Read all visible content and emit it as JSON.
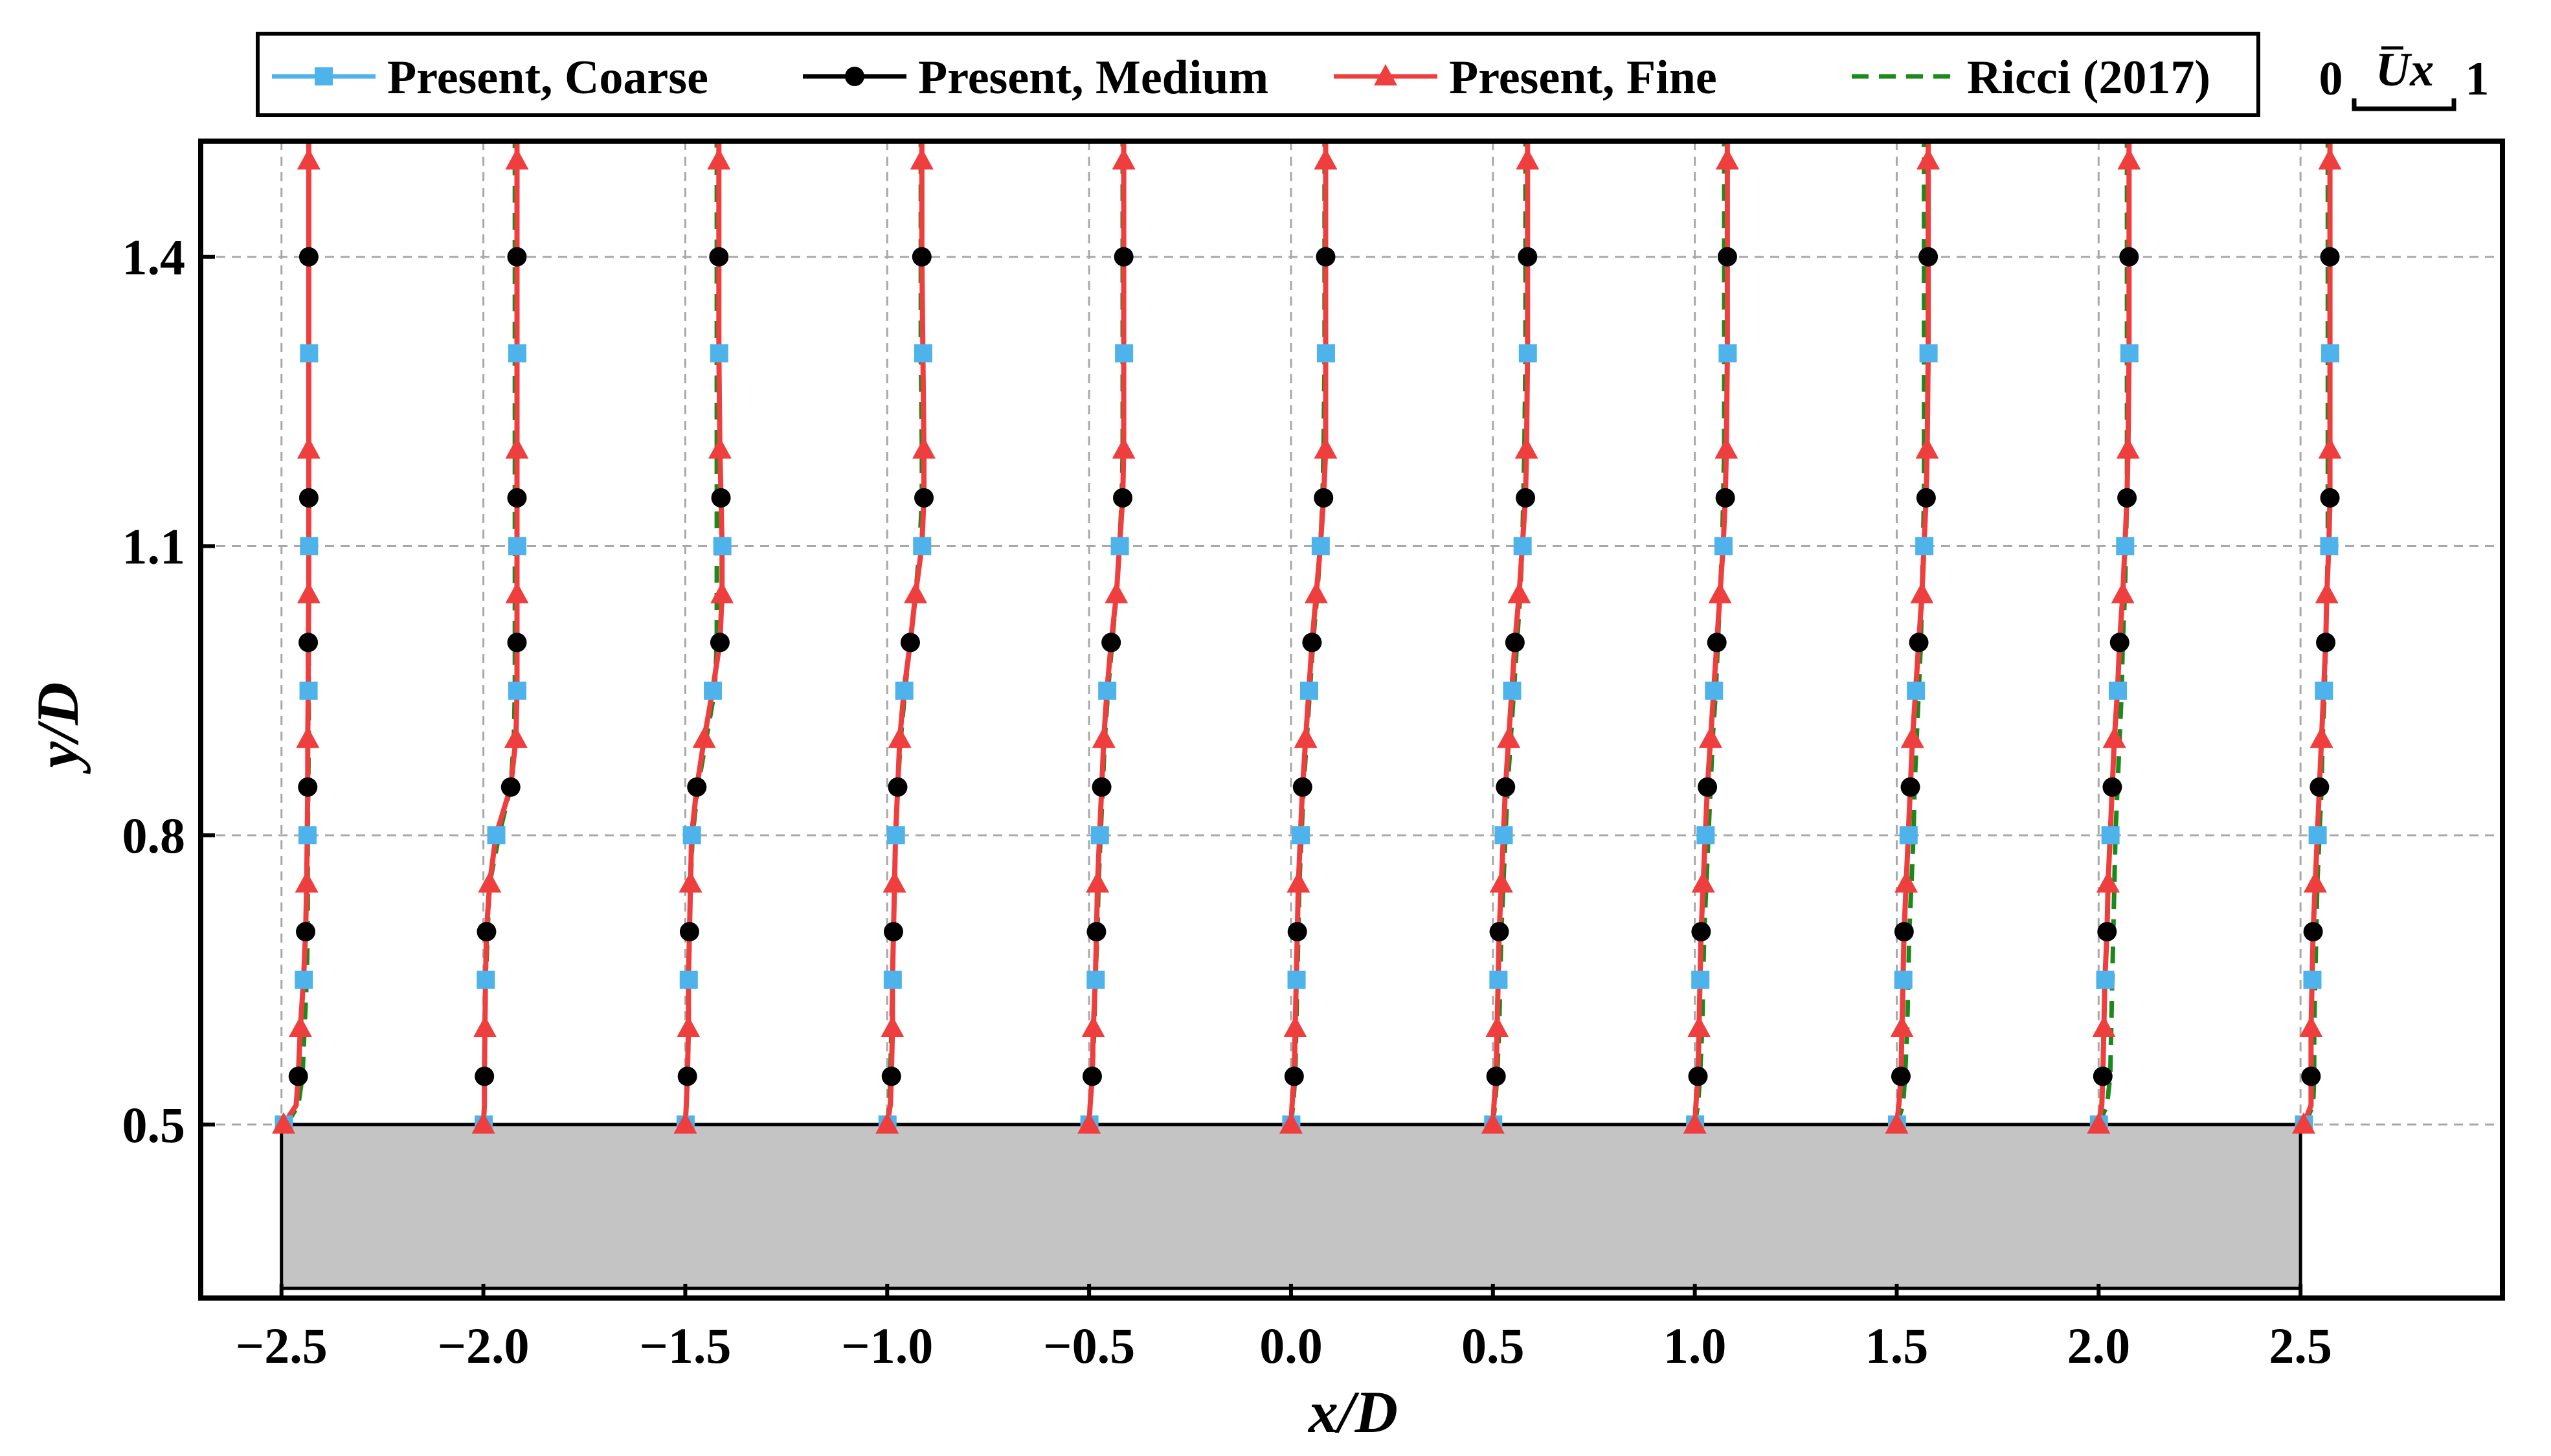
{
  "chart_data": {
    "type": "line",
    "xlabel": "x/D",
    "ylabel": "y/D",
    "xlim": [
      -2.7,
      3.0
    ],
    "ylim": [
      0.32,
      1.52
    ],
    "xticks": [
      -2.5,
      -2.0,
      -1.5,
      -1.0,
      -0.5,
      0.0,
      0.5,
      1.0,
      1.5,
      2.0,
      2.5
    ],
    "xtick_labels": [
      "−2.5",
      "−2.0",
      "−1.5",
      "−1.0",
      "−0.5",
      "0.0",
      "0.5",
      "1.0",
      "1.5",
      "2.0",
      "2.5"
    ],
    "yticks": [
      0.5,
      0.8,
      1.1,
      1.4
    ],
    "ytick_labels": [
      "0.5",
      "0.8",
      "1.1",
      "1.4"
    ],
    "grid": true,
    "body": {
      "x_range": [
        -2.5,
        2.5
      ],
      "y_range": [
        0.33,
        0.5
      ],
      "color": "#c4c4c4"
    },
    "velocity_scale": {
      "label": "Ux",
      "overbar": true,
      "min_label": "0",
      "max_label": "1",
      "span_in_x_units": 0.26
    },
    "legend": [
      {
        "label": "Present, Coarse",
        "color": "#4db3ea",
        "marker": "square",
        "line": "solid"
      },
      {
        "label": "Present, Medium",
        "color": "#000000",
        "marker": "circle",
        "line": "solid"
      },
      {
        "label": "Present, Fine",
        "color": "#ee3e3e",
        "marker": "triangle",
        "line": "solid"
      },
      {
        "label": "Ricci (2017)",
        "color": "#1a8a1a",
        "marker": "none",
        "line": "dashed"
      }
    ],
    "profile_y": [
      0.5,
      0.52,
      0.55,
      0.6,
      0.65,
      0.7,
      0.75,
      0.8,
      0.85,
      0.9,
      0.95,
      1.0,
      1.05,
      1.1,
      1.15,
      1.2,
      1.3,
      1.4,
      1.5,
      1.52
    ],
    "stations": [
      {
        "x0": -2.5,
        "fine": [
          0.02,
          0.14,
          0.16,
          0.18,
          0.21,
          0.23,
          0.24,
          0.245,
          0.25,
          0.25,
          0.255,
          0.255,
          0.26,
          0.26,
          0.26,
          0.26,
          0.26,
          0.26,
          0.26,
          0.26
        ],
        "ricci": [
          0.05,
          0.16,
          0.2,
          0.22,
          0.24,
          0.25,
          0.25,
          0.25,
          0.255,
          0.26,
          0.26,
          0.26,
          0.26,
          0.26,
          0.26,
          0.26,
          0.26,
          0.26,
          0.26,
          0.26
        ]
      },
      {
        "x0": -2.0,
        "fine": [
          0.0,
          0.01,
          0.01,
          0.015,
          0.02,
          0.03,
          0.06,
          0.12,
          0.26,
          0.31,
          0.32,
          0.32,
          0.32,
          0.32,
          0.32,
          0.32,
          0.32,
          0.32,
          0.32,
          0.32
        ],
        "ricci": [
          0.0,
          0.01,
          0.01,
          0.015,
          0.025,
          0.04,
          0.06,
          0.15,
          0.26,
          0.29,
          0.3,
          0.3,
          0.3,
          0.3,
          0.3,
          0.3,
          0.3,
          0.3,
          0.3,
          0.3
        ]
      },
      {
        "x0": -1.5,
        "fine": [
          0.0,
          0.01,
          0.02,
          0.03,
          0.03,
          0.04,
          0.05,
          0.06,
          0.11,
          0.18,
          0.26,
          0.33,
          0.35,
          0.35,
          0.34,
          0.33,
          0.32,
          0.32,
          0.32,
          0.32
        ],
        "ricci": [
          0.0,
          0.01,
          0.02,
          0.03,
          0.03,
          0.04,
          0.05,
          0.07,
          0.12,
          0.2,
          0.28,
          0.3,
          0.3,
          0.3,
          0.3,
          0.3,
          0.3,
          0.3,
          0.3,
          0.3
        ]
      },
      {
        "x0": -1.0,
        "fine": [
          0.0,
          0.03,
          0.04,
          0.05,
          0.05,
          0.06,
          0.07,
          0.08,
          0.1,
          0.12,
          0.16,
          0.22,
          0.27,
          0.33,
          0.35,
          0.35,
          0.34,
          0.33,
          0.33,
          0.33
        ],
        "ricci": [
          0.0,
          0.02,
          0.03,
          0.04,
          0.05,
          0.06,
          0.07,
          0.08,
          0.1,
          0.13,
          0.17,
          0.22,
          0.27,
          0.31,
          0.33,
          0.33,
          0.32,
          0.32,
          0.32,
          0.32
        ]
      },
      {
        "x0": -0.5,
        "fine": [
          0.0,
          0.01,
          0.03,
          0.04,
          0.06,
          0.07,
          0.08,
          0.1,
          0.12,
          0.14,
          0.17,
          0.21,
          0.26,
          0.29,
          0.32,
          0.33,
          0.33,
          0.33,
          0.33,
          0.33
        ],
        "ricci": [
          0.0,
          0.01,
          0.03,
          0.05,
          0.06,
          0.08,
          0.09,
          0.11,
          0.13,
          0.15,
          0.18,
          0.22,
          0.26,
          0.29,
          0.31,
          0.32,
          0.32,
          0.32,
          0.32,
          0.32
        ]
      },
      {
        "x0": 0.0,
        "fine": [
          0.0,
          0.01,
          0.03,
          0.04,
          0.05,
          0.06,
          0.07,
          0.09,
          0.11,
          0.14,
          0.17,
          0.2,
          0.24,
          0.28,
          0.31,
          0.33,
          0.33,
          0.33,
          0.33,
          0.33
        ],
        "ricci": [
          0.0,
          0.02,
          0.04,
          0.05,
          0.06,
          0.07,
          0.08,
          0.1,
          0.12,
          0.15,
          0.18,
          0.21,
          0.25,
          0.28,
          0.3,
          0.31,
          0.32,
          0.32,
          0.32,
          0.32
        ]
      },
      {
        "x0": 0.5,
        "fine": [
          0.0,
          0.01,
          0.03,
          0.04,
          0.05,
          0.06,
          0.08,
          0.1,
          0.12,
          0.15,
          0.18,
          0.21,
          0.25,
          0.28,
          0.31,
          0.32,
          0.33,
          0.33,
          0.33,
          0.33
        ],
        "ricci": [
          0.0,
          0.02,
          0.04,
          0.06,
          0.07,
          0.08,
          0.1,
          0.12,
          0.14,
          0.17,
          0.2,
          0.23,
          0.26,
          0.28,
          0.29,
          0.3,
          0.31,
          0.31,
          0.31,
          0.31
        ]
      },
      {
        "x0": 1.0,
        "fine": [
          0.0,
          0.01,
          0.03,
          0.04,
          0.05,
          0.06,
          0.08,
          0.1,
          0.12,
          0.15,
          0.18,
          0.21,
          0.24,
          0.27,
          0.29,
          0.3,
          0.31,
          0.31,
          0.31,
          0.31
        ],
        "ricci": [
          0.0,
          0.03,
          0.05,
          0.07,
          0.08,
          0.09,
          0.11,
          0.13,
          0.15,
          0.17,
          0.2,
          0.22,
          0.24,
          0.26,
          0.27,
          0.28,
          0.28,
          0.28,
          0.28,
          0.28
        ]
      },
      {
        "x0": 1.5,
        "fine": [
          0.0,
          0.02,
          0.04,
          0.05,
          0.06,
          0.07,
          0.09,
          0.11,
          0.13,
          0.15,
          0.18,
          0.21,
          0.24,
          0.26,
          0.28,
          0.29,
          0.3,
          0.3,
          0.3,
          0.3
        ],
        "ricci": [
          0.0,
          0.06,
          0.08,
          0.1,
          0.11,
          0.12,
          0.14,
          0.16,
          0.17,
          0.19,
          0.21,
          0.23,
          0.24,
          0.25,
          0.26,
          0.26,
          0.26,
          0.26,
          0.26,
          0.26
        ]
      },
      {
        "x0": 2.0,
        "fine": [
          0.0,
          0.03,
          0.04,
          0.05,
          0.06,
          0.08,
          0.09,
          0.11,
          0.13,
          0.15,
          0.18,
          0.2,
          0.23,
          0.25,
          0.27,
          0.28,
          0.29,
          0.29,
          0.29,
          0.29
        ],
        "ricci": [
          0.0,
          0.08,
          0.11,
          0.12,
          0.13,
          0.14,
          0.15,
          0.16,
          0.18,
          0.2,
          0.22,
          0.23,
          0.25,
          0.26,
          0.27,
          0.27,
          0.27,
          0.27,
          0.27,
          0.27
        ]
      },
      {
        "x0": 2.5,
        "fine": [
          0.03,
          0.1,
          0.1,
          0.1,
          0.11,
          0.12,
          0.14,
          0.16,
          0.18,
          0.2,
          0.22,
          0.24,
          0.25,
          0.27,
          0.28,
          0.28,
          0.28,
          0.28,
          0.28,
          0.28
        ],
        "ricci": [
          0.04,
          0.12,
          0.13,
          0.13,
          0.14,
          0.15,
          0.16,
          0.18,
          0.2,
          0.21,
          0.23,
          0.24,
          0.25,
          0.26,
          0.26,
          0.26,
          0.26,
          0.26,
          0.26,
          0.26
        ]
      }
    ]
  }
}
